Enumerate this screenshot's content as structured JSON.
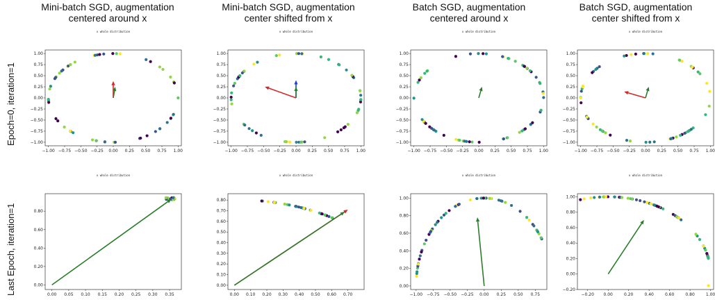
{
  "column_titles": [
    "Mini-batch SGD, augmentation\ncentered around x",
    "Mini-batch SGD, augmentation\ncenter shifted from x",
    "Batch SGD, augmentation\ncentered around x",
    "Batch SGD, augmentation\ncenter shifted from x"
  ],
  "row_labels": [
    "Epoch=0, iteration=1",
    "Last Epoch, iteration=1"
  ],
  "panel_title": "x whole distribution",
  "colors": {
    "arrow_green": "#2a7d2a",
    "arrow_red": "#d62728",
    "arrow_blue": "#1f3fd6",
    "frame": "#333333"
  },
  "chart_data": [
    {
      "type": "scatter",
      "id": "r0c0",
      "xlim": [
        -1.05,
        1.05
      ],
      "ylim": [
        -1.08,
        1.08
      ],
      "xticks": [
        -1.0,
        -0.75,
        -0.5,
        -0.25,
        0.0,
        0.25,
        0.5,
        0.75,
        1.0
      ],
      "yticks": [
        -1.0,
        -0.75,
        -0.5,
        -0.25,
        0.0,
        0.25,
        0.5,
        0.75,
        1.0
      ],
      "points": "ring",
      "arrows": [
        {
          "color": "red",
          "dx": 0.0,
          "dy": 0.38
        },
        {
          "color": "green",
          "dx": 0.03,
          "dy": 0.25
        }
      ]
    },
    {
      "type": "scatter",
      "id": "r0c1",
      "xlim": [
        -1.05,
        1.05
      ],
      "ylim": [
        -1.08,
        1.08
      ],
      "xticks": [
        -1.0,
        -0.75,
        -0.5,
        -0.25,
        0.0,
        0.25,
        0.5,
        0.75,
        1.0
      ],
      "yticks": [
        -1.0,
        -0.75,
        -0.5,
        -0.25,
        0.0,
        0.25,
        0.5,
        0.75,
        1.0
      ],
      "points": "ring",
      "arrows": [
        {
          "color": "red",
          "dx": -0.48,
          "dy": 0.25
        },
        {
          "color": "blue",
          "dx": 0.0,
          "dy": 0.4
        },
        {
          "color": "green",
          "dx": 0.0,
          "dy": 0.25
        }
      ]
    },
    {
      "type": "scatter",
      "id": "r0c2",
      "xlim": [
        -1.05,
        1.05
      ],
      "ylim": [
        -1.08,
        1.08
      ],
      "xticks": [
        -1.0,
        -0.75,
        -0.5,
        -0.25,
        0.0,
        0.25,
        0.5,
        0.75,
        1.0
      ],
      "yticks": [
        -1.0,
        -0.75,
        -0.5,
        -0.25,
        0.0,
        0.25,
        0.5,
        0.75,
        1.0
      ],
      "points": "ring",
      "arrows": [
        {
          "color": "green",
          "dx": 0.05,
          "dy": 0.25
        }
      ]
    },
    {
      "type": "scatter",
      "id": "r0c3",
      "xlim": [
        -1.05,
        1.05
      ],
      "ylim": [
        -1.08,
        1.08
      ],
      "xticks": [
        -1.0,
        -0.75,
        -0.5,
        -0.25,
        0.0,
        0.25,
        0.5,
        0.75,
        1.0
      ],
      "yticks": [
        -1.0,
        -0.75,
        -0.5,
        -0.25,
        0.0,
        0.25,
        0.5,
        0.75,
        1.0
      ],
      "points": "ring",
      "arrows": [
        {
          "color": "red",
          "dx": -0.33,
          "dy": 0.14
        },
        {
          "color": "green",
          "dx": 0.05,
          "dy": 0.25
        }
      ]
    },
    {
      "type": "scatter",
      "id": "r1c0",
      "xlim": [
        -0.02,
        0.385
      ],
      "ylim": [
        -0.05,
        0.99
      ],
      "xticks": [
        0.0,
        0.05,
        0.1,
        0.15,
        0.2,
        0.25,
        0.3,
        0.35
      ],
      "yticks": [
        0.0,
        0.2,
        0.4,
        0.6,
        0.8
      ],
      "points": "cluster",
      "arrows": [
        {
          "color": "green",
          "x0": 0.0,
          "y0": 0.0,
          "dx": 0.355,
          "dy": 0.93
        }
      ]
    },
    {
      "type": "scatter",
      "id": "r1c1",
      "xlim": [
        -0.04,
        0.8
      ],
      "ylim": [
        -0.04,
        0.86
      ],
      "xticks": [
        0.0,
        0.1,
        0.2,
        0.3,
        0.4,
        0.5,
        0.6,
        0.7
      ],
      "yticks": [
        0.0,
        0.1,
        0.2,
        0.3,
        0.4,
        0.5,
        0.6,
        0.7,
        0.8
      ],
      "points": "arc_short",
      "arrows": [
        {
          "color": "red",
          "x0": 0.0,
          "y0": 0.0,
          "dx": 0.7,
          "dy": 0.71
        },
        {
          "color": "green",
          "x0": 0.0,
          "y0": 0.0,
          "dx": 0.68,
          "dy": 0.69
        }
      ]
    },
    {
      "type": "scatter",
      "id": "r1c2",
      "xlim": [
        -1.08,
        0.92
      ],
      "ylim": [
        -0.04,
        1.05
      ],
      "xticks": [
        -1.0,
        -0.75,
        -0.5,
        -0.25,
        0.0,
        0.25,
        0.5,
        0.75
      ],
      "yticks": [
        0.0,
        0.2,
        0.4,
        0.6,
        0.8,
        1.0
      ],
      "points": "arc_left",
      "arrows": [
        {
          "color": "green",
          "x0": 0.0,
          "y0": 0.0,
          "dx": -0.1,
          "dy": 0.78
        }
      ]
    },
    {
      "type": "scatter",
      "id": "r1c3",
      "xlim": [
        -0.3,
        1.03
      ],
      "ylim": [
        -0.2,
        1.04
      ],
      "xticks": [
        -0.2,
        0.0,
        0.2,
        0.4,
        0.6,
        0.8,
        1.0
      ],
      "yticks": [
        -0.2,
        0.0,
        0.2,
        0.4,
        0.6,
        0.8,
        1.0
      ],
      "points": "arc_right",
      "arrows": [
        {
          "color": "green",
          "x0": 0.0,
          "y0": 0.0,
          "dx": 0.35,
          "dy": 0.7
        }
      ]
    }
  ]
}
